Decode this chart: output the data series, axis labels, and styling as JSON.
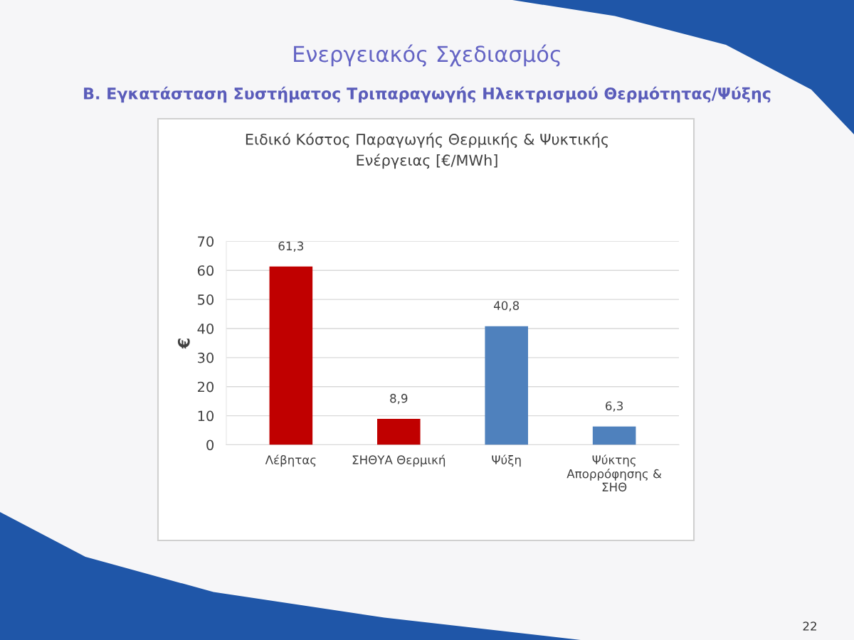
{
  "chart_data": {
    "type": "bar",
    "title": "Ειδικό Κόστος Παραγωγής Θερμικής & Ψυκτικής\nΕνέργειας [€/MWh]",
    "ylabel": "€",
    "categories": [
      "Λέβητας",
      "ΣΗΘΥΑ Θερμική",
      "Ψύξη",
      "Ψύκτης\nΑπορρόφησης &\nΣΗΘ"
    ],
    "values": [
      61.3,
      8.9,
      40.8,
      6.3
    ],
    "colors": [
      "#c00000",
      "#c00000",
      "#4f81bd",
      "#4f81bd"
    ],
    "value_labels": [
      "61,3",
      "8,9",
      "40,8",
      "6,3"
    ],
    "ylim": [
      0,
      70
    ],
    "yticks": [
      0,
      10,
      20,
      30,
      40,
      50,
      60,
      70
    ],
    "grid": "y",
    "annotations": [
      "Ενεργειακός Σχεδιασμός",
      "Β. Εγκατάσταση Συστήματος Τριπαραγωγής Ηλεκτρισμού Θερμότητας/Ψύξης",
      "22"
    ]
  }
}
